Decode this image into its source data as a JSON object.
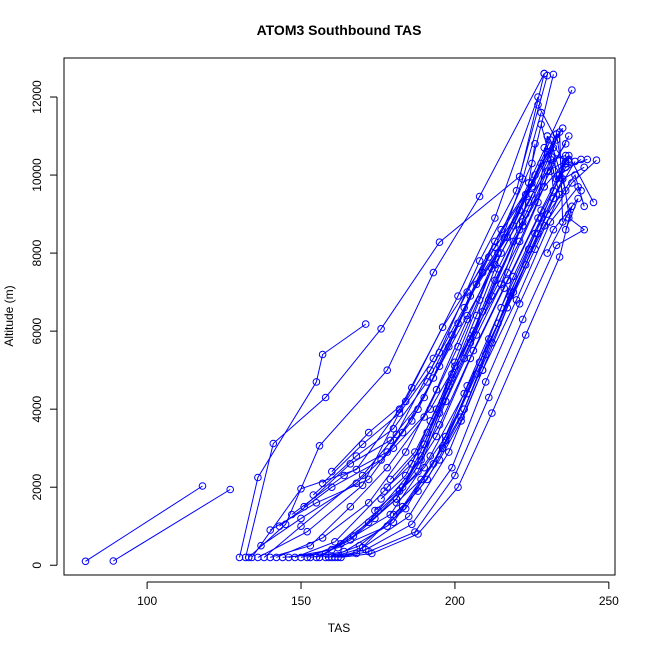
{
  "chart_data": {
    "type": "line",
    "title": "ATOM3 Southbound TAS",
    "xlabel": "TAS",
    "ylabel": "Altitude (m)",
    "xlim": [
      73,
      252
    ],
    "ylim": [
      -250,
      13000
    ],
    "x_ticks": [
      100,
      150,
      200,
      250
    ],
    "y_ticks": [
      0,
      2000,
      4000,
      6000,
      8000,
      10000,
      12000
    ],
    "x_tick_labels": [
      "100",
      "150",
      "200",
      "250"
    ],
    "y_tick_labels": [
      "0",
      "2000",
      "4000",
      "6000",
      "8000",
      "10000",
      "12000"
    ],
    "grid": false,
    "line_color": "#0000ff",
    "markers": "open-circle",
    "series": [
      {
        "x": [
          80,
          118
        ],
        "y": [
          100,
          2030
        ]
      },
      {
        "x": [
          89,
          127
        ],
        "y": [
          110,
          1940
        ]
      },
      {
        "x": [
          130,
          136,
          155,
          157,
          171
        ],
        "y": [
          200,
          2250,
          4700,
          5400,
          6180
        ]
      },
      {
        "x": [
          132,
          141,
          158,
          176,
          195,
          221,
          230
        ],
        "y": [
          200,
          3120,
          4300,
          6060,
          8280,
          9960,
          12550
        ]
      },
      {
        "x": [
          133,
          145,
          156,
          178,
          193,
          208,
          229
        ],
        "y": [
          200,
          1050,
          3060,
          5000,
          7500,
          9450,
          12600
        ]
      },
      {
        "x": [
          134,
          150,
          168,
          182,
          196,
          213,
          225,
          232
        ],
        "y": [
          200,
          1960,
          2450,
          4000,
          6100,
          8150,
          10300,
          12580
        ]
      },
      {
        "x": [
          136,
          152,
          170,
          186,
          201,
          213,
          227
        ],
        "y": [
          200,
          860,
          2050,
          4550,
          6900,
          8900,
          12000
        ]
      },
      {
        "x": [
          138,
          150,
          170,
          181,
          195,
          208,
          220,
          229
        ],
        "y": [
          200,
          1000,
          2300,
          3350,
          5450,
          7800,
          9600,
          12600
        ]
      },
      {
        "x": [
          140,
          153,
          166,
          178,
          190,
          201,
          212,
          222,
          228
        ],
        "y": [
          200,
          500,
          1500,
          2500,
          3800,
          5600,
          7600,
          9900,
          11600
        ]
      },
      {
        "x": [
          142,
          157,
          172,
          184,
          194,
          204,
          214,
          224,
          238
        ],
        "y": [
          200,
          700,
          1600,
          2900,
          4500,
          6300,
          8000,
          9800,
          12180
        ]
      },
      {
        "x": [
          144,
          158,
          174,
          188,
          197,
          207,
          217,
          227,
          230
        ],
        "y": [
          200,
          300,
          1200,
          2400,
          4200,
          5900,
          7500,
          9300,
          11000
        ]
      },
      {
        "x": [
          146,
          160,
          175,
          189,
          199,
          209,
          219,
          229,
          233
        ],
        "y": [
          200,
          400,
          1400,
          2700,
          4800,
          6500,
          8300,
          9700,
          11050
        ]
      },
      {
        "x": [
          148,
          161,
          177,
          190,
          200,
          211,
          221,
          231,
          237
        ],
        "y": [
          200,
          600,
          1900,
          3100,
          5100,
          6800,
          8600,
          10100,
          11000
        ]
      },
      {
        "x": [
          150,
          162,
          178,
          191,
          202,
          212,
          223,
          232,
          239
        ],
        "y": [
          200,
          450,
          1000,
          2200,
          3800,
          5700,
          7700,
          9400,
          10350
        ]
      },
      {
        "x": [
          152,
          163,
          179,
          192,
          203,
          214,
          224,
          234,
          241
        ],
        "y": [
          200,
          550,
          1300,
          2800,
          4400,
          6200,
          8100,
          10000,
          10400
        ]
      },
      {
        "x": [
          153,
          164,
          180,
          193,
          204,
          215,
          226,
          235,
          242
        ],
        "y": [
          200,
          350,
          1100,
          2600,
          4600,
          6600,
          8500,
          9900,
          10200
        ]
      },
      {
        "x": [
          155,
          166,
          181,
          194,
          205,
          216,
          227,
          236,
          243
        ],
        "y": [
          200,
          650,
          1700,
          3300,
          5300,
          7100,
          8900,
          10200,
          10400
        ]
      },
      {
        "x": [
          156,
          167,
          182,
          195,
          206,
          217,
          228,
          237,
          245
        ],
        "y": [
          200,
          750,
          1900,
          3600,
          5500,
          7300,
          9100,
          10500,
          9300
        ]
      },
      {
        "x": [
          158,
          168,
          183,
          196,
          207,
          218,
          229,
          238,
          246
        ],
        "y": [
          200,
          300,
          1500,
          3000,
          4900,
          6900,
          8700,
          9800,
          10380
        ]
      },
      {
        "x": [
          159,
          169,
          184,
          197,
          208,
          219,
          230,
          239,
          242
        ],
        "y": [
          200,
          500,
          1450,
          3200,
          5200,
          7000,
          9000,
          10000,
          9200
        ]
      },
      {
        "x": [
          160,
          170,
          185,
          198,
          209,
          220,
          231,
          240,
          241
        ],
        "y": [
          200,
          450,
          1250,
          2900,
          5000,
          6800,
          8800,
          9700,
          9600
        ]
      },
      {
        "x": [
          161,
          171,
          186,
          199,
          210,
          221,
          232,
          240,
          236
        ],
        "y": [
          200,
          400,
          1050,
          2500,
          4700,
          6700,
          8600,
          9400,
          8600
        ]
      },
      {
        "x": [
          162,
          172,
          187,
          200,
          211,
          222,
          233,
          242,
          237
        ],
        "y": [
          200,
          350,
          850,
          2300,
          4300,
          6300,
          8200,
          8600,
          8900
        ]
      },
      {
        "x": [
          163,
          173,
          188,
          201,
          212,
          223,
          234,
          238,
          230
        ],
        "y": [
          200,
          300,
          800,
          2000,
          3900,
          5900,
          7900,
          9200,
          8000
        ]
      },
      {
        "x": [
          137,
          150,
          168,
          180,
          192,
          205,
          215,
          222,
          226
        ],
        "y": [
          500,
          1200,
          2100,
          3000,
          4000,
          5800,
          7200,
          8800,
          10800
        ]
      },
      {
        "x": [
          140,
          155,
          172,
          183,
          193,
          204,
          213,
          225,
          236
        ],
        "y": [
          900,
          1600,
          2200,
          3400,
          4800,
          6400,
          7700,
          9500,
          10800
        ]
      },
      {
        "x": [
          143,
          160,
          176,
          186,
          195,
          205,
          214,
          226,
          235
        ],
        "y": [
          1000,
          2000,
          2700,
          3700,
          5100,
          6900,
          8000,
          10000,
          11200
        ]
      },
      {
        "x": [
          147,
          164,
          178,
          188,
          198,
          207,
          217,
          228,
          236
        ],
        "y": [
          1300,
          2300,
          2900,
          4000,
          5600,
          7200,
          8400,
          10300,
          10500
        ]
      },
      {
        "x": [
          151,
          166,
          179,
          190,
          199,
          209,
          219,
          230,
          237
        ],
        "y": [
          1500,
          2600,
          3200,
          4300,
          5900,
          7500,
          8700,
          10600,
          10350
        ]
      },
      {
        "x": [
          154,
          168,
          180,
          191,
          201,
          211,
          221,
          231,
          236
        ],
        "y": [
          1800,
          2800,
          3500,
          4700,
          6200,
          7900,
          9100,
          10900,
          9600
        ]
      },
      {
        "x": [
          157,
          170,
          182,
          192,
          203,
          213,
          223,
          233,
          237
        ],
        "y": [
          2100,
          3100,
          3900,
          5000,
          6600,
          8300,
          9500,
          11050,
          9000
        ]
      },
      {
        "x": [
          160,
          172,
          184,
          193,
          204,
          215,
          225,
          234,
          235
        ],
        "y": [
          2400,
          3400,
          4200,
          5300,
          7000,
          8600,
          9800,
          11100,
          8800
        ]
      },
      {
        "x": [
          172,
          181,
          189,
          195,
          203,
          212,
          221,
          229,
          236
        ],
        "y": [
          1100,
          1700,
          2800,
          3900,
          5300,
          6900,
          8300,
          9700,
          10350
        ]
      },
      {
        "x": [
          174,
          183,
          190,
          196,
          205,
          213,
          222,
          230,
          237
        ],
        "y": [
          1400,
          2000,
          3100,
          4200,
          5700,
          7300,
          8700,
          10100,
          10400
        ]
      },
      {
        "x": [
          176,
          184,
          191,
          198,
          206,
          214,
          223,
          231,
          232
        ],
        "y": [
          1700,
          2300,
          3400,
          4600,
          6000,
          7600,
          9000,
          10400,
          9600
        ]
      },
      {
        "x": [
          178,
          186,
          192,
          199,
          207,
          215,
          224,
          232,
          233
        ],
        "y": [
          2000,
          2600,
          3700,
          4900,
          6400,
          8000,
          9300,
          10700,
          9900
        ]
      },
      {
        "x": [
          179,
          187,
          194,
          200,
          208,
          216,
          225,
          233,
          227
        ],
        "y": [
          2200,
          2900,
          4000,
          5200,
          6800,
          8400,
          9700,
          10900,
          11800
        ]
      },
      {
        "x": [
          180,
          188,
          195,
          202,
          209,
          217,
          226,
          234,
          228
        ],
        "y": [
          1300,
          1900,
          2700,
          3700,
          5000,
          6600,
          8100,
          9500,
          11300
        ]
      },
      {
        "x": [
          181,
          189,
          196,
          203,
          210,
          218,
          227,
          235,
          229
        ],
        "y": [
          1600,
          2200,
          3000,
          4000,
          5400,
          7000,
          8500,
          9900,
          10700
        ]
      },
      {
        "x": [
          182,
          190,
          197,
          204,
          211,
          219,
          228,
          236,
          230
        ],
        "y": [
          1900,
          2500,
          3300,
          4400,
          5800,
          7400,
          8900,
          10300,
          11000
        ]
      }
    ]
  }
}
